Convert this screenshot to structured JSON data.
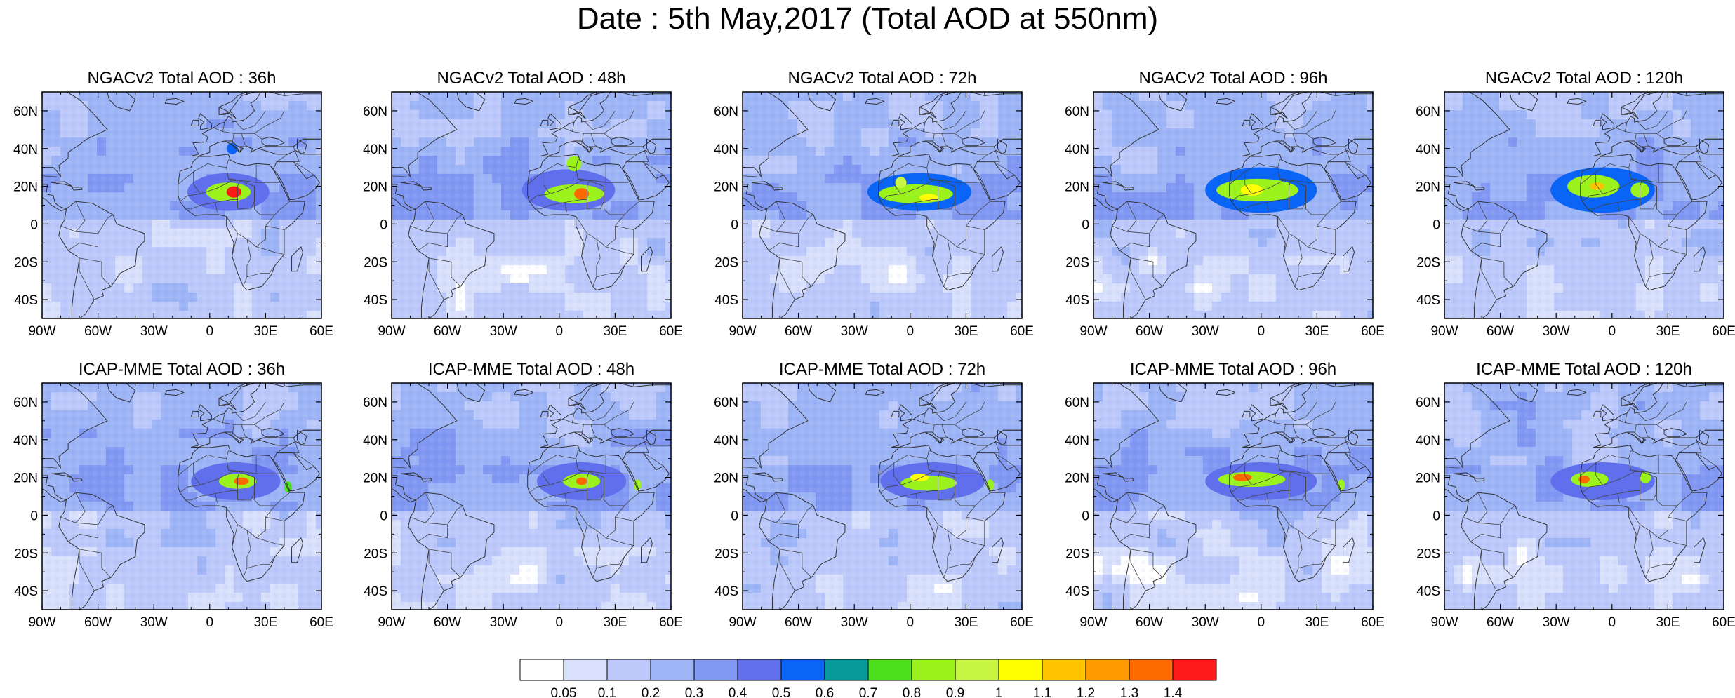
{
  "title": "Date : 5th May,2017 (Total AOD at 550nm)",
  "rows": [
    {
      "model": "NGACv2",
      "panels": [
        {
          "title": "NGACv2 Total AOD : 36h",
          "lead": "36h"
        },
        {
          "title": "NGACv2 Total AOD : 48h",
          "lead": "48h"
        },
        {
          "title": "NGACv2 Total AOD : 72h",
          "lead": "72h"
        },
        {
          "title": "NGACv2 Total AOD : 96h",
          "lead": "96h"
        },
        {
          "title": "NGACv2 Total AOD : 120h",
          "lead": "120h"
        }
      ]
    },
    {
      "model": "ICAP-MME",
      "panels": [
        {
          "title": "ICAP-MME Total AOD : 36h",
          "lead": "36h"
        },
        {
          "title": "ICAP-MME Total AOD : 48h",
          "lead": "48h"
        },
        {
          "title": "ICAP-MME Total AOD : 72h",
          "lead": "72h"
        },
        {
          "title": "ICAP-MME Total AOD : 96h",
          "lead": "96h"
        },
        {
          "title": "ICAP-MME Total AOD : 120h",
          "lead": "120h"
        }
      ]
    }
  ],
  "map": {
    "lon_range": [
      -90,
      60
    ],
    "lat_range": [
      -50,
      70
    ],
    "x_ticks": [
      {
        "lon": -90,
        "label": "90W"
      },
      {
        "lon": -60,
        "label": "60W"
      },
      {
        "lon": -30,
        "label": "30W"
      },
      {
        "lon": 0,
        "label": "0"
      },
      {
        "lon": 30,
        "label": "30E"
      },
      {
        "lon": 60,
        "label": "60E"
      }
    ],
    "y_ticks": [
      {
        "lat": 60,
        "label": "60N"
      },
      {
        "lat": 40,
        "label": "40N"
      },
      {
        "lat": 20,
        "label": "20N"
      },
      {
        "lat": 0,
        "label": "0"
      },
      {
        "lat": -20,
        "label": "20S"
      },
      {
        "lat": -40,
        "label": "40S"
      }
    ]
  },
  "colorbar": {
    "labels": [
      "0.05",
      "0.1",
      "0.2",
      "0.3",
      "0.4",
      "0.5",
      "0.6",
      "0.7",
      "0.8",
      "0.9",
      "1",
      "1.1",
      "1.2",
      "1.3",
      "1.4"
    ],
    "colors": [
      "#ffffff",
      "#d9e0fb",
      "#bcc9fa",
      "#9db4f5",
      "#8098f2",
      "#6070ec",
      "#0a64f5",
      "#079a9a",
      "#4be01a",
      "#9cf21c",
      "#c8f542",
      "#ffff00",
      "#ffc400",
      "#ff9a00",
      "#ff6a00",
      "#ff1a1a"
    ]
  },
  "dust_plumes": [
    [
      {
        "lon": 10,
        "lat": 17,
        "level": 0.4,
        "rx": 22,
        "ry": 10
      },
      {
        "lon": 10,
        "lat": 17,
        "level": 0.8,
        "rx": 12,
        "ry": 5
      },
      {
        "lon": 13,
        "lat": 17,
        "level": 1.4,
        "rx": 4,
        "ry": 3
      },
      {
        "lon": 12,
        "lat": 40,
        "level": 0.5,
        "rx": 3,
        "ry": 3
      }
    ],
    [
      {
        "lon": 5,
        "lat": 18,
        "level": 0.4,
        "rx": 25,
        "ry": 11
      },
      {
        "lon": 8,
        "lat": 16,
        "level": 0.8,
        "rx": 16,
        "ry": 5
      },
      {
        "lon": 12,
        "lat": 16,
        "level": 1.3,
        "rx": 4,
        "ry": 3
      },
      {
        "lon": 8,
        "lat": 32,
        "level": 0.8,
        "rx": 4,
        "ry": 4
      }
    ],
    [
      {
        "lon": 5,
        "lat": 17,
        "level": 0.5,
        "rx": 28,
        "ry": 10
      },
      {
        "lon": 3,
        "lat": 16,
        "level": 0.8,
        "rx": 20,
        "ry": 5
      },
      {
        "lon": 10,
        "lat": 14,
        "level": 1.0,
        "rx": 5,
        "ry": 2
      },
      {
        "lon": -5,
        "lat": 22,
        "level": 0.9,
        "rx": 3,
        "ry": 3
      }
    ],
    [
      {
        "lon": 0,
        "lat": 18,
        "level": 0.5,
        "rx": 30,
        "ry": 12
      },
      {
        "lon": -2,
        "lat": 18,
        "level": 0.8,
        "rx": 22,
        "ry": 6
      },
      {
        "lon": -5,
        "lat": 18,
        "level": 1.0,
        "rx": 6,
        "ry": 3
      }
    ],
    [
      {
        "lon": -5,
        "lat": 18,
        "level": 0.5,
        "rx": 28,
        "ry": 12
      },
      {
        "lon": -10,
        "lat": 20,
        "level": 0.8,
        "rx": 14,
        "ry": 6
      },
      {
        "lon": 15,
        "lat": 18,
        "level": 0.8,
        "rx": 5,
        "ry": 4
      },
      {
        "lon": -8,
        "lat": 20,
        "level": 1.1,
        "rx": 4,
        "ry": 2
      }
    ],
    [
      {
        "lon": 14,
        "lat": 18,
        "level": 0.4,
        "rx": 24,
        "ry": 10
      },
      {
        "lon": 15,
        "lat": 18,
        "level": 0.8,
        "rx": 10,
        "ry": 4
      },
      {
        "lon": 17,
        "lat": 18,
        "level": 1.3,
        "rx": 4,
        "ry": 2
      },
      {
        "lon": 42,
        "lat": 15,
        "level": 0.7,
        "rx": 2,
        "ry": 3
      }
    ],
    [
      {
        "lon": 12,
        "lat": 18,
        "level": 0.4,
        "rx": 24,
        "ry": 10
      },
      {
        "lon": 12,
        "lat": 18,
        "level": 0.8,
        "rx": 10,
        "ry": 4
      },
      {
        "lon": 12,
        "lat": 18,
        "level": 1.3,
        "rx": 3,
        "ry": 2
      },
      {
        "lon": 42,
        "lat": 16,
        "level": 0.8,
        "rx": 2,
        "ry": 3
      }
    ],
    [
      {
        "lon": 12,
        "lat": 18,
        "level": 0.4,
        "rx": 28,
        "ry": 10
      },
      {
        "lon": 10,
        "lat": 17,
        "level": 0.8,
        "rx": 15,
        "ry": 4
      },
      {
        "lon": 5,
        "lat": 20,
        "level": 1.0,
        "rx": 5,
        "ry": 2
      },
      {
        "lon": 43,
        "lat": 16,
        "level": 0.8,
        "rx": 2,
        "ry": 3
      }
    ],
    [
      {
        "lon": 0,
        "lat": 18,
        "level": 0.4,
        "rx": 30,
        "ry": 10
      },
      {
        "lon": -5,
        "lat": 19,
        "level": 0.8,
        "rx": 18,
        "ry": 4
      },
      {
        "lon": -10,
        "lat": 20,
        "level": 1.3,
        "rx": 5,
        "ry": 2
      },
      {
        "lon": 43,
        "lat": 16,
        "level": 0.8,
        "rx": 2,
        "ry": 3
      }
    ],
    [
      {
        "lon": -5,
        "lat": 18,
        "level": 0.4,
        "rx": 28,
        "ry": 10
      },
      {
        "lon": -12,
        "lat": 19,
        "level": 0.8,
        "rx": 10,
        "ry": 4
      },
      {
        "lon": -15,
        "lat": 19,
        "level": 1.3,
        "rx": 3,
        "ry": 2
      },
      {
        "lon": 18,
        "lat": 20,
        "level": 0.8,
        "rx": 3,
        "ry": 3
      }
    ]
  ]
}
